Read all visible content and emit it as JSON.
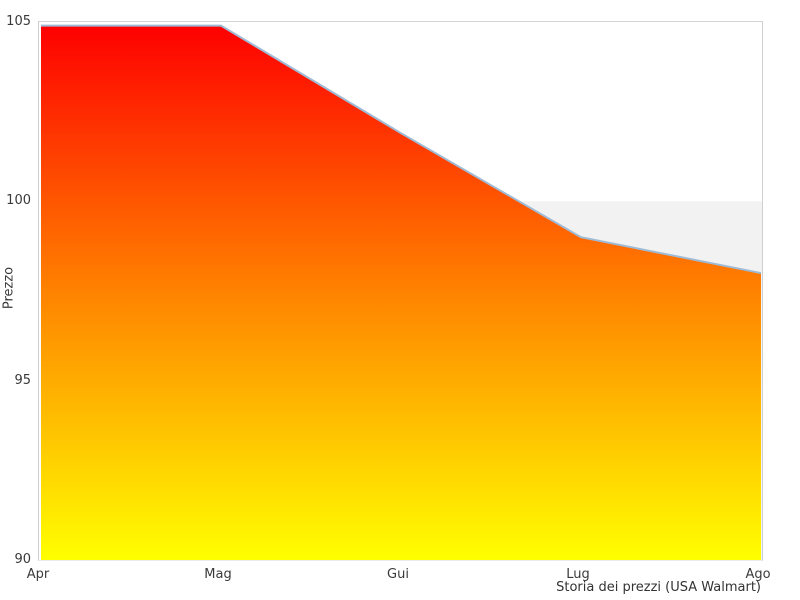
{
  "chart_data": {
    "type": "area",
    "categories": [
      "Apr",
      "Mag",
      "Gui",
      "Lug",
      "Ago"
    ],
    "values": [
      104.9,
      104.9,
      101.9,
      99.0,
      98.0
    ],
    "title": "Storia dei prezzi (USA Walmart)",
    "xlabel": "Storia dei prezzi (USA Walmart)",
    "ylabel": "Prezzo",
    "ylim": [
      90,
      105
    ],
    "yticks": [
      105,
      100,
      95,
      90
    ],
    "grid": "off",
    "legend": "none",
    "band": {
      "y_from": 90,
      "y_to": 100,
      "color": "#f2f2f2",
      "note": "light gray region below 100, visible behind the series"
    },
    "colors": {
      "line": "#9fbbd6",
      "gradient_top": "#fe0000",
      "gradient_mid": "#ff8300",
      "gradient_bottom": "#ffff00",
      "border": "#d4d4d4",
      "tick_text": "#3a3a3a"
    }
  }
}
